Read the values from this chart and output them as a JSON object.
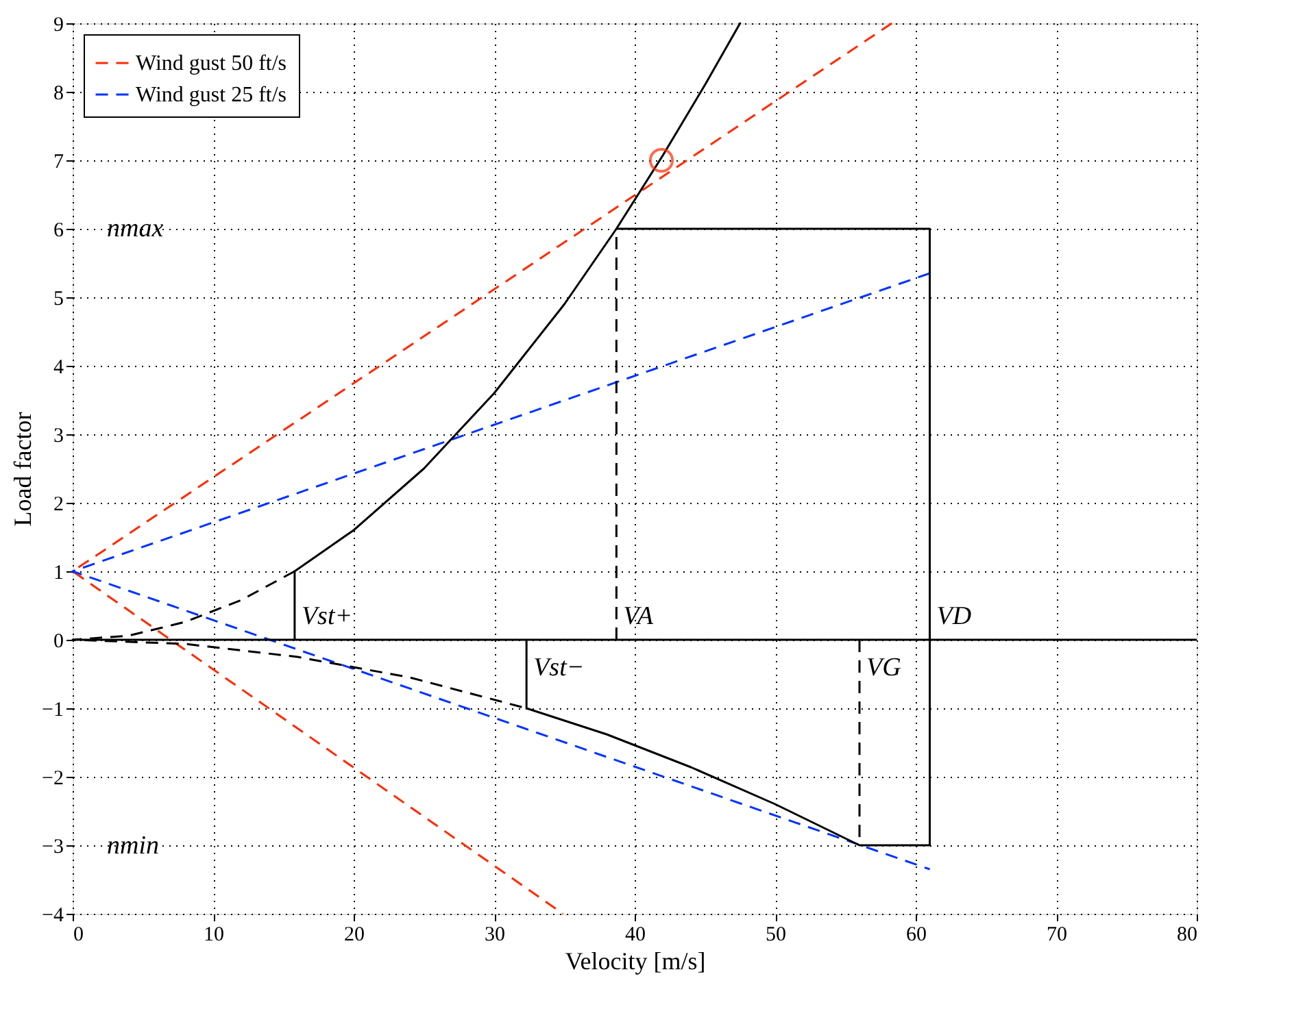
{
  "chart_data": {
    "type": "line",
    "xlabel": "Velocity [m/s]",
    "ylabel": "Load factor",
    "xlim": [
      0,
      80
    ],
    "xticks": [
      0,
      10,
      20,
      30,
      40,
      50,
      60,
      70,
      80
    ],
    "ylim": [
      -4,
      9
    ],
    "yticks": [
      -4,
      -3,
      -2,
      -1,
      0,
      1,
      2,
      3,
      4,
      5,
      6,
      7,
      8,
      9
    ],
    "grid": true,
    "legend": "top left",
    "series": [
      {
        "name": "Wind gust 50 ft/s",
        "color": "#ff2a00",
        "line_style": "dashed",
        "x": [
          58.3,
          0,
          34.9
        ],
        "values": [
          9,
          1,
          -4
        ]
      },
      {
        "name": "Wind gust 25 ft/s",
        "color": "#0033ff",
        "line_style": "dashed",
        "x": [
          61,
          0,
          61
        ],
        "values": [
          5.35,
          1,
          -3.35
        ]
      },
      {
        "color": "#000000",
        "line_style": "dashed",
        "x": [
          15.8,
          12,
          8,
          4,
          0,
          8,
          16,
          24,
          32.3
        ],
        "values": [
          1.0,
          0.58,
          0.26,
          0.06,
          0,
          -0.06,
          -0.25,
          -0.55,
          -1.0
        ]
      },
      {
        "color": "#000000",
        "line_style": "solid",
        "x": [
          15.8,
          15.8,
          20,
          25,
          30,
          35,
          38.7,
          42,
          45,
          47.5,
          45,
          42,
          38.7,
          61,
          61,
          56,
          50,
          44,
          38,
          32.3,
          32.3
        ],
        "values": [
          0,
          1.0,
          1.6,
          2.5,
          3.6,
          4.9,
          6.0,
          7.07,
          8.1,
          9.0,
          8.1,
          7.07,
          6.0,
          6,
          -3,
          -3,
          -2.4,
          -1.86,
          -1.38,
          -1.0,
          0
        ]
      },
      {
        "color": "#000000",
        "line_style": "dashed",
        "x": [
          38.7,
          38.7
        ],
        "values": [
          0,
          6
        ]
      },
      {
        "color": "#000000",
        "line_style": "dashed",
        "x": [
          56,
          56
        ],
        "values": [
          0,
          -3
        ]
      },
      {
        "type": "scatter",
        "color": "#ff2a00",
        "marker": "circle",
        "x": [
          41.9
        ],
        "values": [
          7.0
        ]
      }
    ],
    "ref_lines": [
      {
        "axis": "y",
        "value": 0,
        "color": "#000000",
        "line_style": "solid"
      }
    ],
    "annotations": [
      "nmax",
      "nmin",
      {
        "text": "Vst+",
        "x": 15.8,
        "y": 0.35
      },
      {
        "text": "Vst−",
        "x": 32.3,
        "y": -0.4
      },
      {
        "text": "VA",
        "x": 38.7,
        "y": 0.35
      },
      {
        "text": "VG",
        "x": 56,
        "y": -0.4
      },
      {
        "text": "VD",
        "x": 61,
        "y": 0.35
      }
    ]
  }
}
